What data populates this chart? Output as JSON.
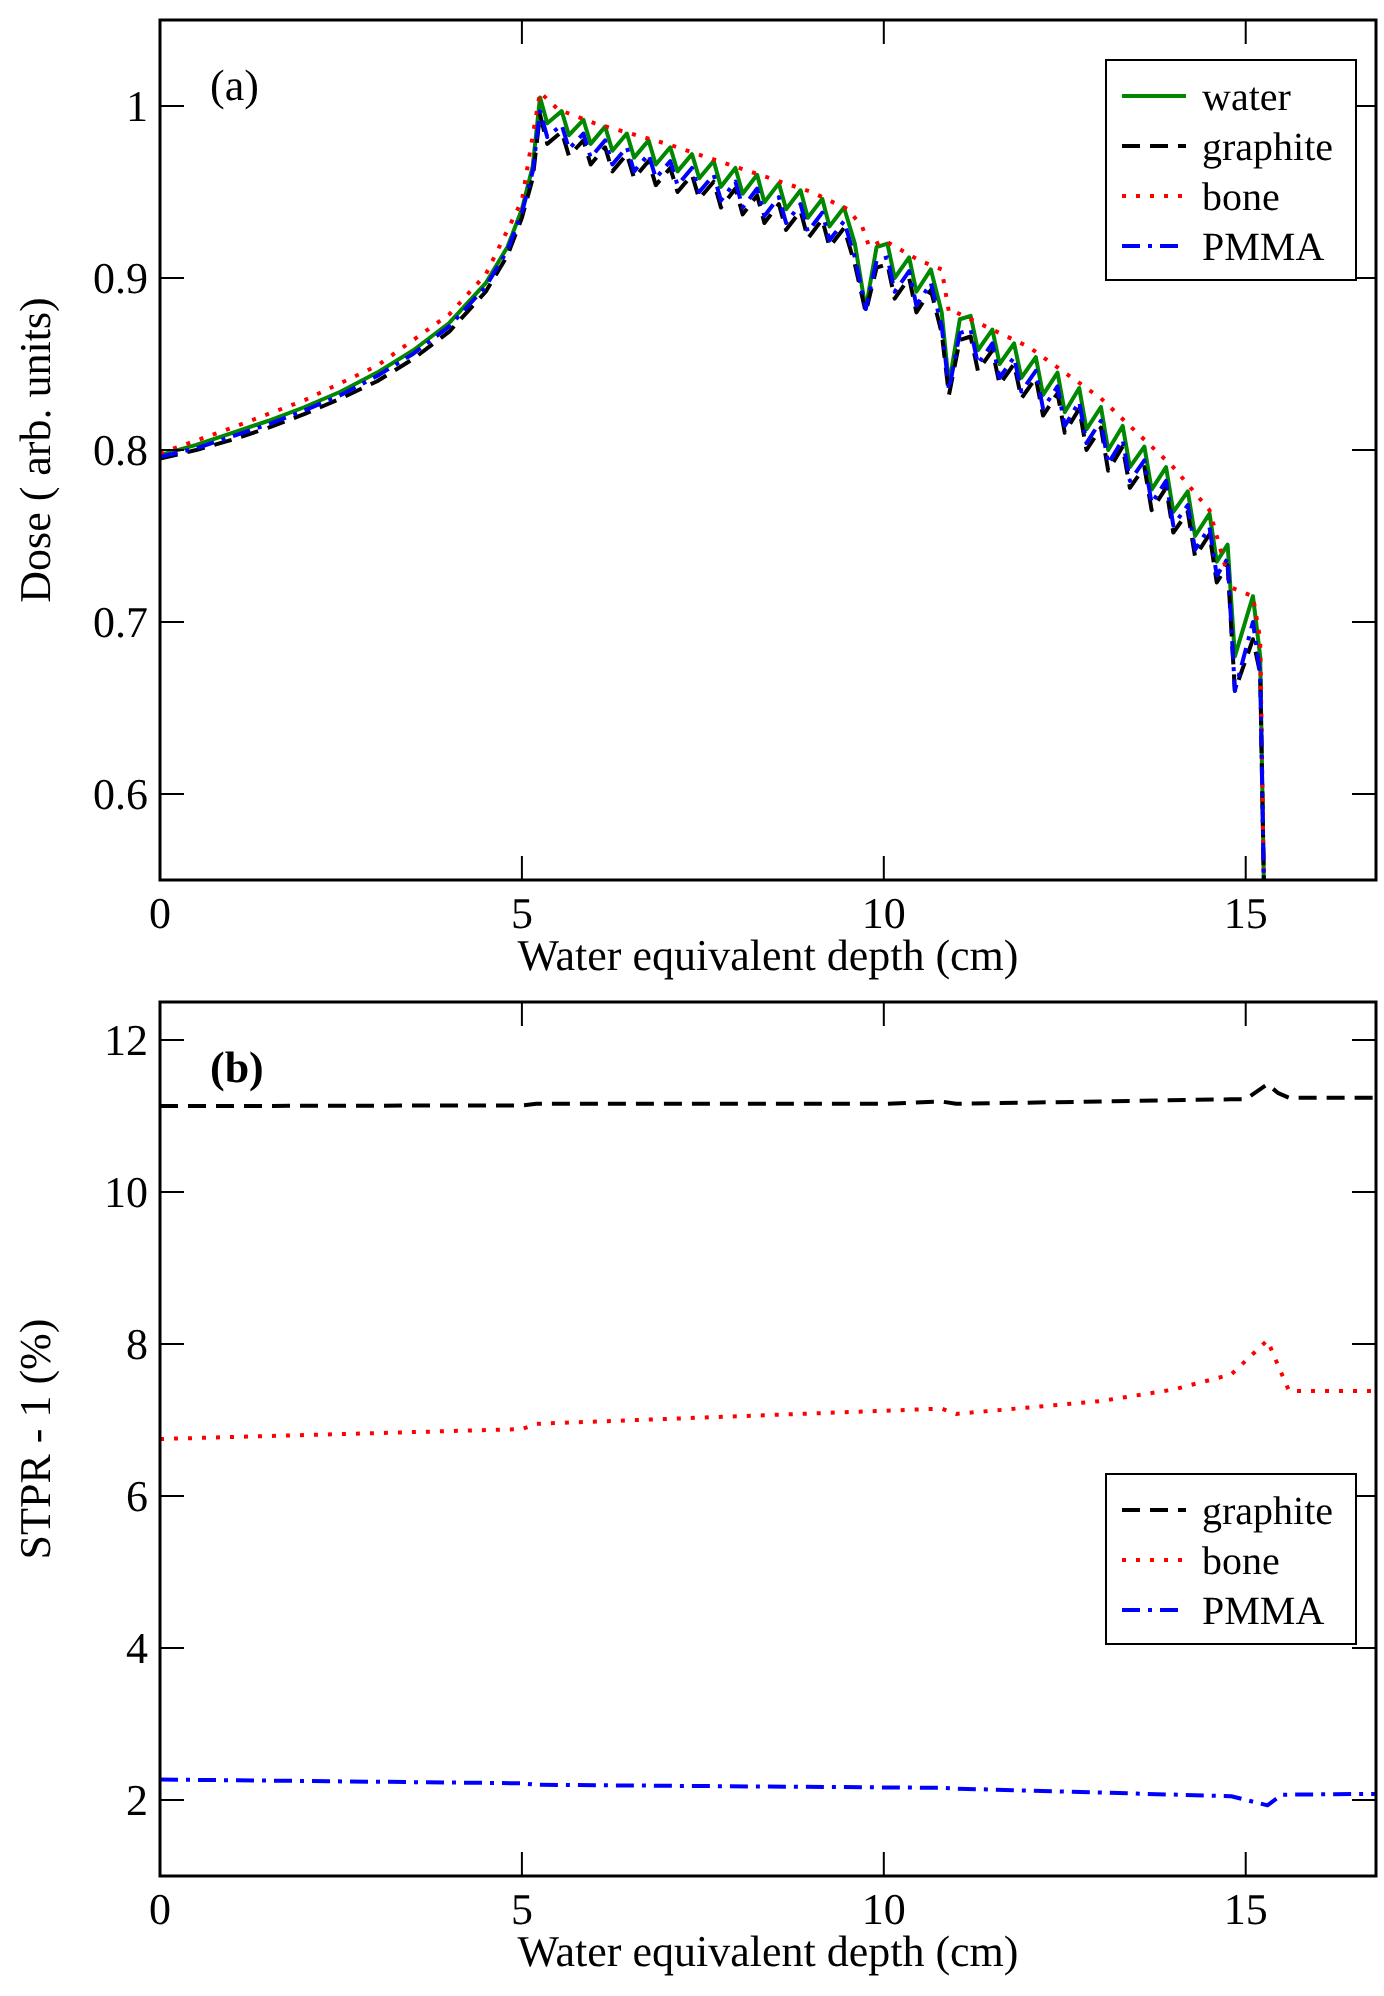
{
  "chart_data": [
    {
      "type": "line",
      "xlabel": "Water equivalent depth  (cm)",
      "ylabel": "Dose  ( arb. units)",
      "annotations": [
        "(a)"
      ],
      "xlim": [
        0,
        16.8
      ],
      "ylim": [
        0.55,
        1.05
      ],
      "xticks": [
        0,
        5,
        10,
        15
      ],
      "yticks": [
        0.6,
        0.7,
        0.8,
        0.9,
        1
      ],
      "legend": "top right",
      "grid": false,
      "x": [
        0,
        0.5,
        1,
        1.5,
        2,
        2.5,
        3,
        3.5,
        4,
        4.5,
        4.8,
        5,
        5.15,
        5.25,
        5.35,
        5.55,
        5.65,
        5.85,
        5.95,
        6.15,
        6.25,
        6.45,
        6.55,
        6.75,
        6.85,
        7.05,
        7.15,
        7.35,
        7.45,
        7.65,
        7.75,
        7.95,
        8.05,
        8.25,
        8.35,
        8.55,
        8.65,
        8.85,
        8.95,
        9.15,
        9.25,
        9.45,
        9.6,
        9.75,
        9.9,
        10.05,
        10.15,
        10.35,
        10.45,
        10.65,
        10.8,
        10.9,
        11.05,
        11.2,
        11.3,
        11.5,
        11.6,
        11.8,
        11.9,
        12.1,
        12.2,
        12.4,
        12.5,
        12.7,
        12.8,
        13,
        13.1,
        13.3,
        13.4,
        13.6,
        13.7,
        13.9,
        14,
        14.2,
        14.3,
        14.5,
        14.6,
        14.75,
        14.85,
        15.1,
        15.2,
        15.25
      ],
      "series": [
        {
          "name": "water",
          "color": "#008800",
          "line_style": "solid",
          "values": [
            0.797,
            0.803,
            0.81,
            0.817,
            0.825,
            0.834,
            0.845,
            0.858,
            0.874,
            0.897,
            0.918,
            0.94,
            0.965,
            1.005,
            0.99,
            0.997,
            0.983,
            0.992,
            0.978,
            0.988,
            0.974,
            0.984,
            0.97,
            0.98,
            0.966,
            0.976,
            0.962,
            0.972,
            0.958,
            0.968,
            0.953,
            0.964,
            0.949,
            0.96,
            0.944,
            0.955,
            0.94,
            0.951,
            0.935,
            0.946,
            0.93,
            0.941,
            0.92,
            0.882,
            0.918,
            0.92,
            0.9,
            0.912,
            0.892,
            0.905,
            0.88,
            0.838,
            0.876,
            0.878,
            0.858,
            0.87,
            0.85,
            0.862,
            0.842,
            0.854,
            0.832,
            0.845,
            0.822,
            0.836,
            0.812,
            0.825,
            0.8,
            0.814,
            0.79,
            0.802,
            0.777,
            0.79,
            0.764,
            0.776,
            0.75,
            0.763,
            0.735,
            0.745,
            0.68,
            0.715,
            0.68,
            0.55
          ]
        },
        {
          "name": "graphite",
          "color": "#000000",
          "line_style": "dashed",
          "values": [
            0.795,
            0.8,
            0.806,
            0.813,
            0.821,
            0.83,
            0.84,
            0.853,
            0.869,
            0.892,
            0.913,
            0.935,
            0.958,
            0.995,
            0.978,
            0.985,
            0.971,
            0.98,
            0.966,
            0.976,
            0.962,
            0.972,
            0.958,
            0.968,
            0.954,
            0.964,
            0.95,
            0.96,
            0.946,
            0.956,
            0.941,
            0.952,
            0.937,
            0.948,
            0.932,
            0.943,
            0.928,
            0.939,
            0.923,
            0.934,
            0.918,
            0.929,
            0.908,
            0.88,
            0.906,
            0.908,
            0.888,
            0.9,
            0.88,
            0.893,
            0.868,
            0.832,
            0.864,
            0.866,
            0.846,
            0.858,
            0.838,
            0.85,
            0.83,
            0.842,
            0.82,
            0.833,
            0.81,
            0.824,
            0.8,
            0.813,
            0.788,
            0.802,
            0.778,
            0.79,
            0.765,
            0.778,
            0.752,
            0.764,
            0.738,
            0.751,
            0.723,
            0.733,
            0.66,
            0.69,
            0.67,
            0.55
          ]
        },
        {
          "name": "bone",
          "color": "#ff0000",
          "line_style": "dotted",
          "x": [
            0,
            1,
            2,
            3,
            4,
            4.5,
            5,
            5.25,
            5.5,
            6,
            7,
            8,
            9,
            9.5,
            9.7,
            9.8,
            10,
            10.5,
            10.8,
            10.9,
            11,
            12,
            13,
            14,
            14.5,
            14.8,
            15.1,
            15.2,
            15.25
          ],
          "values": [
            0.798,
            0.813,
            0.829,
            0.849,
            0.879,
            0.902,
            0.945,
            1.008,
            0.998,
            0.99,
            0.978,
            0.964,
            0.95,
            0.94,
            0.93,
            0.918,
            0.922,
            0.91,
            0.905,
            0.88,
            0.88,
            0.86,
            0.83,
            0.79,
            0.765,
            0.72,
            0.715,
            0.69,
            0.55
          ]
        },
        {
          "name": "PMMA",
          "color": "#0000ff",
          "line_style": "dashdot",
          "values": [
            0.796,
            0.801,
            0.808,
            0.815,
            0.823,
            0.832,
            0.843,
            0.856,
            0.872,
            0.895,
            0.916,
            0.938,
            0.962,
            0.997,
            0.982,
            0.989,
            0.975,
            0.984,
            0.97,
            0.98,
            0.966,
            0.976,
            0.962,
            0.972,
            0.958,
            0.968,
            0.954,
            0.964,
            0.95,
            0.96,
            0.945,
            0.956,
            0.941,
            0.952,
            0.936,
            0.947,
            0.932,
            0.943,
            0.927,
            0.938,
            0.922,
            0.933,
            0.912,
            0.882,
            0.91,
            0.912,
            0.892,
            0.904,
            0.884,
            0.897,
            0.872,
            0.835,
            0.868,
            0.87,
            0.85,
            0.862,
            0.842,
            0.854,
            0.834,
            0.846,
            0.824,
            0.837,
            0.814,
            0.828,
            0.804,
            0.817,
            0.792,
            0.806,
            0.782,
            0.794,
            0.769,
            0.782,
            0.756,
            0.768,
            0.742,
            0.755,
            0.727,
            0.737,
            0.66,
            0.7,
            0.67,
            0.55
          ]
        }
      ]
    },
    {
      "type": "line",
      "xlabel": "Water equivalent depth  (cm)",
      "ylabel": "STPR - 1  (%)",
      "annotations": [
        "(b)"
      ],
      "xlim": [
        0,
        16.8
      ],
      "ylim": [
        1,
        12.5
      ],
      "xticks": [
        0,
        5,
        10,
        15
      ],
      "yticks": [
        2,
        4,
        6,
        8,
        10,
        12
      ],
      "legend": "right",
      "grid": false,
      "series": [
        {
          "name": "graphite",
          "color": "#000000",
          "line_style": "dashed",
          "x": [
            0,
            5,
            5.2,
            10,
            10.8,
            11,
            14.8,
            15,
            15.3,
            15.45,
            15.6,
            16.8
          ],
          "values": [
            11.13,
            11.14,
            11.16,
            11.16,
            11.19,
            11.16,
            11.22,
            11.22,
            11.42,
            11.3,
            11.24,
            11.24
          ]
        },
        {
          "name": "bone",
          "color": "#ff0000",
          "line_style": "dotted",
          "x": [
            0,
            5,
            5.2,
            10.8,
            11,
            13,
            14,
            14.8,
            15.3,
            15.5,
            15.6,
            16.8
          ],
          "values": [
            6.75,
            6.88,
            6.95,
            7.15,
            7.08,
            7.25,
            7.4,
            7.6,
            8.05,
            7.6,
            7.38,
            7.38
          ]
        },
        {
          "name": "PMMA",
          "color": "#0000ff",
          "line_style": "dashdot",
          "x": [
            0,
            5,
            5.2,
            10.8,
            11,
            14.8,
            15.3,
            15.5,
            16.8
          ],
          "values": [
            2.27,
            2.22,
            2.2,
            2.16,
            2.15,
            2.05,
            1.93,
            2.07,
            2.08
          ]
        }
      ]
    }
  ]
}
